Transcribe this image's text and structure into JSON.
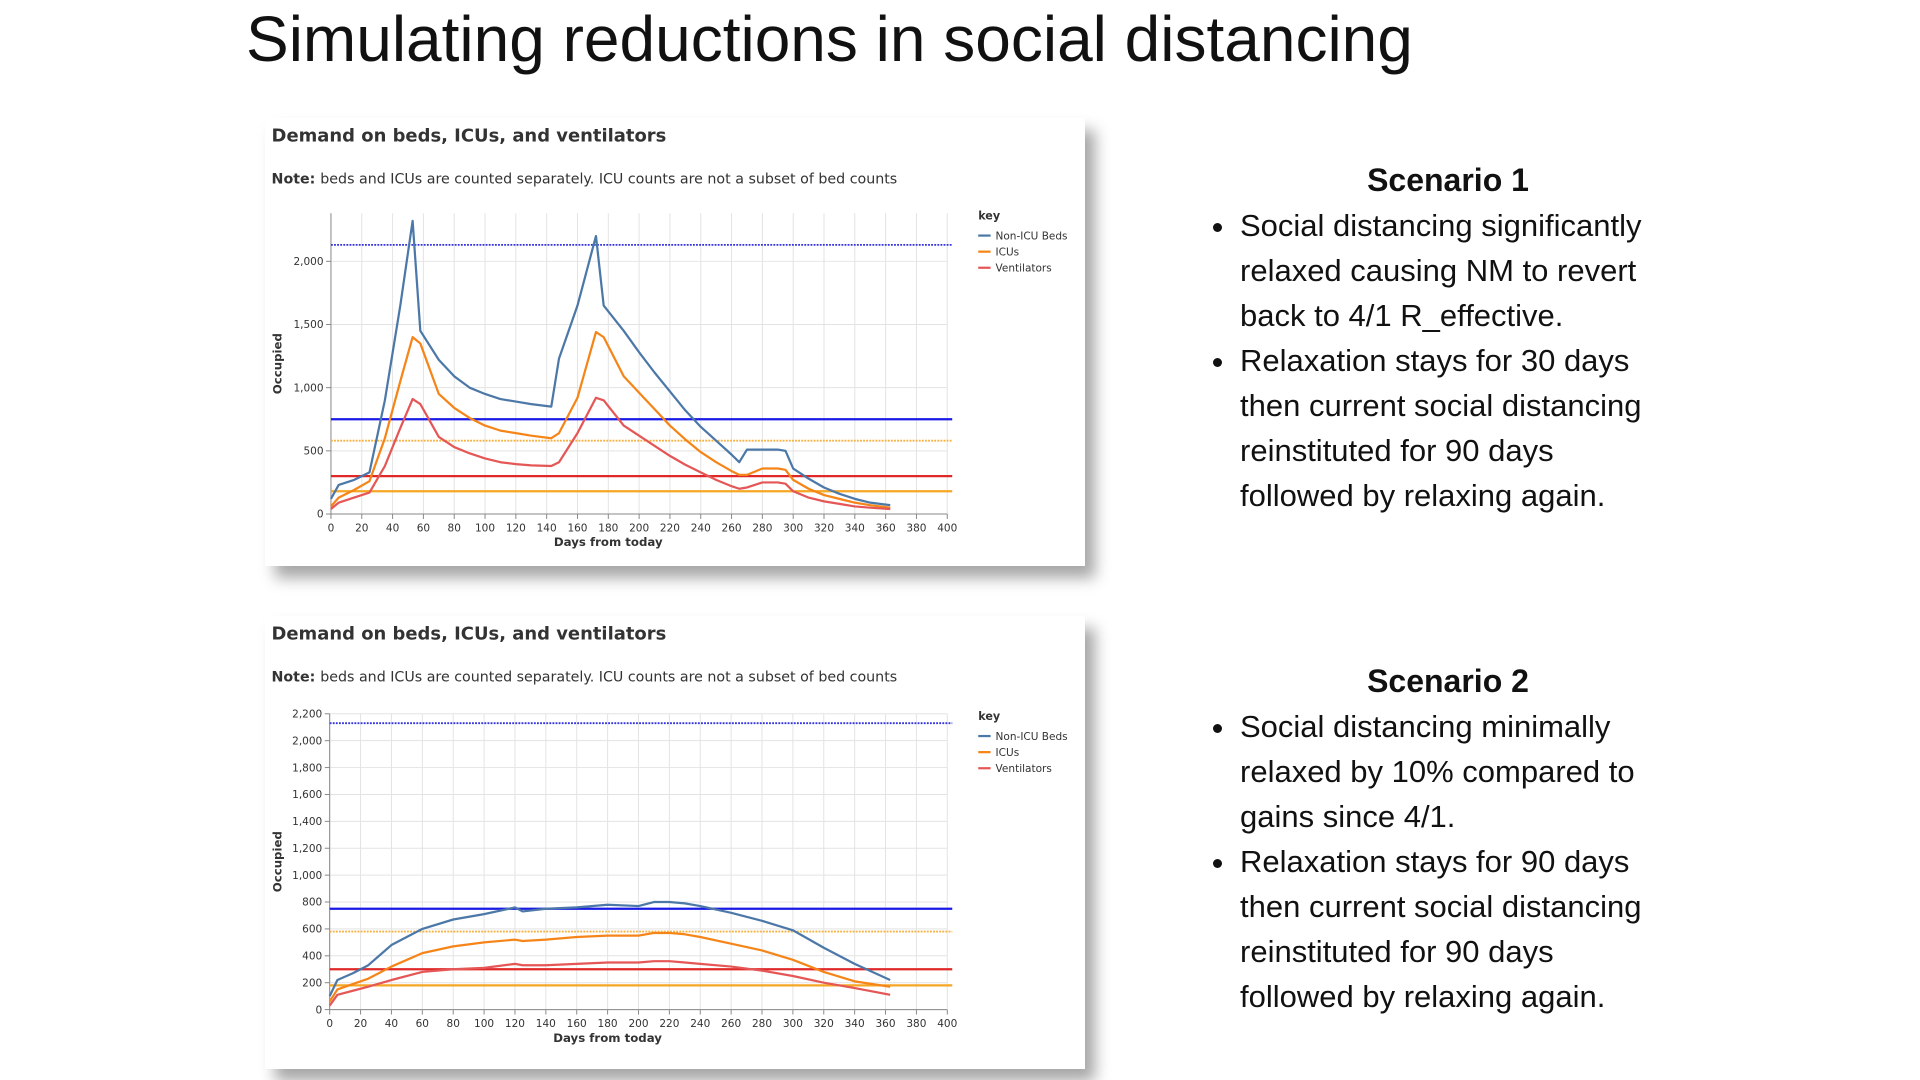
{
  "title": "Simulating reductions in social distancing",
  "chart_data": [
    {
      "type": "line",
      "title": "Demand on beds, ICUs, and ventilators",
      "note_label": "Note:",
      "note": "beds and ICUs are counted separately. ICU counts are not a subset of bed counts",
      "xlabel": "Days from today",
      "ylabel": "Occupied",
      "legend_title": "key",
      "grid": true,
      "xlim": [
        0,
        400
      ],
      "xticks": [
        0,
        20,
        40,
        60,
        80,
        100,
        120,
        140,
        160,
        180,
        200,
        220,
        240,
        260,
        280,
        300,
        320,
        340,
        360,
        380,
        400
      ],
      "ylim": [
        0,
        2380
      ],
      "yticks": [
        0,
        500,
        {
          "value": 1000,
          "label": "1,000"
        },
        {
          "value": 1500,
          "label": "1,500"
        },
        {
          "value": 2000,
          "label": "2,000"
        }
      ],
      "x": [
        0,
        5,
        15,
        25,
        35,
        45,
        53,
        58,
        70,
        80,
        90,
        100,
        110,
        120,
        130,
        143,
        148,
        160,
        172,
        177,
        190,
        200,
        210,
        220,
        230,
        240,
        250,
        260,
        265,
        270,
        280,
        290,
        295,
        300,
        310,
        320,
        330,
        340,
        350,
        363
      ],
      "series": [
        {
          "name": "Non-ICU Beds",
          "color": "#4c78a8",
          "values": [
            120,
            230,
            270,
            330,
            900,
            1650,
            2320,
            1450,
            1220,
            1090,
            1000,
            950,
            910,
            890,
            870,
            850,
            1230,
            1650,
            2200,
            1650,
            1450,
            1280,
            1120,
            970,
            820,
            690,
            580,
            470,
            410,
            510,
            510,
            510,
            500,
            360,
            280,
            210,
            160,
            120,
            90,
            70
          ]
        },
        {
          "name": "ICUs",
          "color": "#f58518",
          "values": [
            60,
            130,
            190,
            260,
            600,
            1050,
            1400,
            1350,
            950,
            840,
            760,
            700,
            660,
            640,
            620,
            600,
            640,
            920,
            1440,
            1400,
            1090,
            960,
            830,
            700,
            590,
            490,
            410,
            340,
            310,
            310,
            360,
            360,
            350,
            270,
            200,
            150,
            120,
            90,
            70,
            50
          ]
        },
        {
          "name": "Ventilators",
          "color": "#e45756",
          "values": [
            40,
            90,
            130,
            170,
            380,
            680,
            910,
            870,
            610,
            530,
            480,
            440,
            410,
            395,
            385,
            380,
            410,
            640,
            920,
            900,
            700,
            620,
            540,
            460,
            390,
            330,
            270,
            220,
            200,
            210,
            250,
            250,
            240,
            180,
            130,
            100,
            80,
            60,
            50,
            40
          ]
        }
      ],
      "reference_lines": [
        {
          "value": 2130,
          "color": "#3333dd",
          "style": "dotted"
        },
        {
          "value": 750,
          "color": "#1a1ae6",
          "style": "solid"
        },
        {
          "value": 580,
          "color": "#f5b041",
          "style": "dotted"
        },
        {
          "value": 300,
          "color": "#e02828",
          "style": "solid"
        },
        {
          "value": 180,
          "color": "#f5a623",
          "style": "solid"
        }
      ]
    },
    {
      "type": "line",
      "title": "Demand on beds, ICUs, and ventilators",
      "note_label": "Note:",
      "note": "beds and ICUs are counted separately. ICU counts are not a subset of bed counts",
      "xlabel": "Days from today",
      "ylabel": "Occupied",
      "legend_title": "key",
      "grid": true,
      "xlim": [
        0,
        400
      ],
      "xticks": [
        0,
        20,
        40,
        60,
        80,
        100,
        120,
        140,
        160,
        180,
        200,
        220,
        240,
        260,
        280,
        300,
        320,
        340,
        360,
        380,
        400
      ],
      "ylim": [
        0,
        2200
      ],
      "yticks": [
        0,
        200,
        400,
        600,
        800,
        {
          "value": 1000,
          "label": "1,000"
        },
        {
          "value": 1200,
          "label": "1,200"
        },
        {
          "value": 1400,
          "label": "1,400"
        },
        {
          "value": 1600,
          "label": "1,600"
        },
        {
          "value": 1800,
          "label": "1,800"
        },
        {
          "value": 2000,
          "label": "2,000"
        },
        {
          "value": 2200,
          "label": "2,200"
        }
      ],
      "x": [
        0,
        5,
        15,
        25,
        40,
        60,
        80,
        100,
        120,
        125,
        140,
        160,
        180,
        200,
        210,
        220,
        230,
        240,
        260,
        280,
        300,
        320,
        340,
        363
      ],
      "series": [
        {
          "name": "Non-ICU Beds",
          "color": "#4c78a8",
          "values": [
            100,
            220,
            270,
            330,
            480,
            600,
            670,
            710,
            760,
            730,
            750,
            760,
            780,
            770,
            800,
            800,
            790,
            770,
            720,
            660,
            590,
            460,
            340,
            220
          ]
        },
        {
          "name": "ICUs",
          "color": "#f58518",
          "values": [
            60,
            150,
            190,
            230,
            320,
            420,
            470,
            500,
            520,
            510,
            520,
            540,
            550,
            550,
            570,
            570,
            560,
            540,
            490,
            440,
            370,
            280,
            210,
            170
          ]
        },
        {
          "name": "Ventilators",
          "color": "#e45756",
          "values": [
            30,
            110,
            140,
            170,
            220,
            280,
            300,
            310,
            340,
            330,
            330,
            340,
            350,
            350,
            360,
            360,
            350,
            340,
            320,
            290,
            250,
            200,
            160,
            110
          ]
        }
      ],
      "reference_lines": [
        {
          "value": 2130,
          "color": "#3333dd",
          "style": "dotted"
        },
        {
          "value": 750,
          "color": "#1a1ae6",
          "style": "solid"
        },
        {
          "value": 580,
          "color": "#f5b041",
          "style": "dotted"
        },
        {
          "value": 300,
          "color": "#e02828",
          "style": "solid"
        },
        {
          "value": 180,
          "color": "#f5a623",
          "style": "solid"
        }
      ]
    }
  ],
  "scenarios": [
    {
      "heading": "Scenario 1",
      "bullets": [
        "Social distancing significantly relaxed causing NM to revert back to 4/1 R_effective.",
        "Relaxation stays for 30 days then current social distancing reinstituted for 90 days followed by relaxing again."
      ]
    },
    {
      "heading": "Scenario 2",
      "bullets": [
        "Social distancing minimally relaxed by 10%  compared to gains since 4/1.",
        "Relaxation stays for 90 days then current social distancing reinstituted for 90 days followed by relaxing again."
      ]
    }
  ]
}
